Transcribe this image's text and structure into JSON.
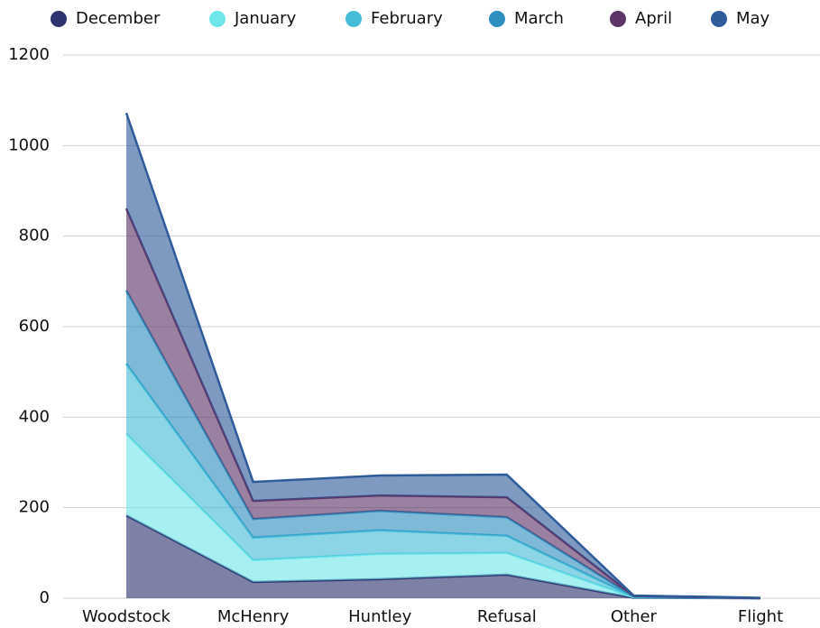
{
  "chart_data": {
    "type": "area",
    "stacked": true,
    "categories": [
      "Woodstock",
      "McHenry",
      "Huntley",
      "Refusal",
      "Other",
      "Flight"
    ],
    "series": [
      {
        "name": "December",
        "color": "#2e3470",
        "values": [
          183,
          36,
          42,
          52,
          1,
          0
        ]
      },
      {
        "name": "January",
        "color": "#6fe6e9",
        "values": [
          180,
          48,
          56,
          48,
          1,
          0
        ]
      },
      {
        "name": "February",
        "color": "#45bcd8",
        "values": [
          155,
          50,
          52,
          38,
          1,
          0
        ]
      },
      {
        "name": "March",
        "color": "#2f8fc0",
        "values": [
          162,
          41,
          43,
          41,
          1,
          0
        ]
      },
      {
        "name": "April",
        "color": "#5d3468",
        "values": [
          181,
          40,
          34,
          44,
          1,
          0
        ]
      },
      {
        "name": "May",
        "color": "#2e5c9a",
        "values": [
          211,
          42,
          44,
          50,
          1,
          1
        ]
      }
    ],
    "ylim": [
      0,
      1200
    ],
    "yticks": [
      0,
      200,
      400,
      600,
      800,
      1000,
      1200
    ],
    "grid": true,
    "legend": "top"
  }
}
